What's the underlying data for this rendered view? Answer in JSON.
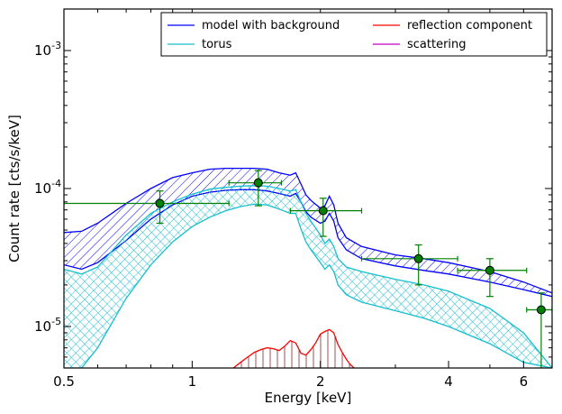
{
  "chart_data": {
    "type": "line",
    "xlabel": "Energy [keV]",
    "ylabel": "Count rate [cts/s/keV]",
    "x_scale": "log",
    "y_scale": "log",
    "xlim": [
      0.5,
      7.0
    ],
    "ylim": [
      5e-06,
      0.002
    ],
    "grid": false,
    "legend_position": "top-right",
    "x_ticks": [
      {
        "value": 0.5,
        "label": "0.5"
      },
      {
        "value": 1,
        "label": "1"
      },
      {
        "value": 2,
        "label": "2"
      },
      {
        "value": 4,
        "label": "4"
      },
      {
        "value": 6,
        "label": "6"
      }
    ],
    "y_ticks": [
      {
        "value": 1e-05,
        "label": "10",
        "exp": "-5"
      },
      {
        "value": 0.0001,
        "label": "10",
        "exp": "-4"
      },
      {
        "value": 0.001,
        "label": "10",
        "exp": "-3"
      }
    ],
    "legend": [
      {
        "name": "model with background",
        "color": "#0000ff"
      },
      {
        "name": "reflection component",
        "color": "#ff0000"
      },
      {
        "name": "torus",
        "color": "#17becf"
      },
      {
        "name": "scattering",
        "color": "#bf00bf"
      }
    ],
    "bands": [
      {
        "series": "model with background",
        "color": "#0000ff",
        "hatch": "diagonal",
        "x": [
          0.5,
          0.55,
          0.6,
          0.7,
          0.8,
          0.9,
          1.0,
          1.1,
          1.2,
          1.3,
          1.4,
          1.5,
          1.6,
          1.7,
          1.75,
          1.8,
          1.85,
          1.9,
          2.0,
          2.05,
          2.1,
          2.15,
          2.2,
          2.3,
          2.5,
          3.0,
          3.5,
          4.0,
          5.0,
          6.0,
          7.0
        ],
        "upper": [
          4.8e-05,
          4.9e-05,
          5.6e-05,
          7.8e-05,
          0.0001,
          0.00012,
          0.00013,
          0.000138,
          0.00014,
          0.00014,
          0.00014,
          0.000138,
          0.00013,
          0.000125,
          0.00013,
          0.000108,
          9e-05,
          8.2e-05,
          7.2e-05,
          7.5e-05,
          8.8e-05,
          7.6e-05,
          5.6e-05,
          4.4e-05,
          3.8e-05,
          3.3e-05,
          3.1e-05,
          2.9e-05,
          2.5e-05,
          2.1e-05,
          1.75e-05
        ],
        "lower": [
          2.8e-05,
          2.6e-05,
          2.9e-05,
          4.2e-05,
          6e-05,
          7.6e-05,
          8.8e-05,
          9.4e-05,
          9.7e-05,
          9.8e-05,
          9.8e-05,
          9.6e-05,
          9.2e-05,
          8.8e-05,
          9.2e-05,
          8e-05,
          6.8e-05,
          6.2e-05,
          5.6e-05,
          5.8e-05,
          6.6e-05,
          5.8e-05,
          4.4e-05,
          3.6e-05,
          3.1e-05,
          2.75e-05,
          2.55e-05,
          2.4e-05,
          2.1e-05,
          1.85e-05,
          1.65e-05
        ]
      },
      {
        "series": "torus",
        "color": "#17becf",
        "hatch": "cross",
        "x": [
          0.5,
          0.55,
          0.6,
          0.7,
          0.8,
          0.9,
          1.0,
          1.1,
          1.2,
          1.3,
          1.4,
          1.5,
          1.6,
          1.7,
          1.75,
          1.8,
          1.85,
          1.9,
          2.0,
          2.05,
          2.1,
          2.15,
          2.2,
          2.3,
          2.5,
          3.0,
          3.5,
          4.0,
          5.0,
          6.0,
          7.0
        ],
        "upper": [
          2.6e-05,
          2.4e-05,
          2.7e-05,
          4.6e-05,
          6.6e-05,
          8e-05,
          9.1e-05,
          9.9e-05,
          0.000102,
          0.000104,
          0.000105,
          0.000104,
          0.0001,
          9.6e-05,
          9.8e-05,
          8e-05,
          6.6e-05,
          5.8e-05,
          4.6e-05,
          4e-05,
          4.3e-05,
          3.8e-05,
          3.1e-05,
          2.7e-05,
          2.5e-05,
          2.2e-05,
          2e-05,
          1.8e-05,
          1.35e-05,
          9e-06,
          5e-06
        ],
        "lower": [
          5e-06,
          5e-06,
          7e-06,
          1.6e-05,
          2.8e-05,
          4.1e-05,
          5.3e-05,
          6.2e-05,
          6.9e-05,
          7.4e-05,
          7.7e-05,
          7.6e-05,
          7.1e-05,
          6.6e-05,
          6.6e-05,
          5.1e-05,
          4.1e-05,
          3.6e-05,
          2.9e-05,
          2.6e-05,
          2.8e-05,
          2.5e-05,
          2e-05,
          1.7e-05,
          1.5e-05,
          1.3e-05,
          1.15e-05,
          1e-05,
          7.5e-06,
          5.5e-06,
          5e-06
        ]
      }
    ],
    "lines": [
      {
        "series": "reflection component",
        "color": "#ff0000",
        "hatch": "vertical",
        "x": [
          1.25,
          1.3,
          1.35,
          1.4,
          1.45,
          1.5,
          1.55,
          1.6,
          1.65,
          1.7,
          1.75,
          1.8,
          1.85,
          1.9,
          1.95,
          2.0,
          2.05,
          2.1,
          2.15,
          2.2,
          2.25,
          2.3,
          2.35,
          2.4
        ],
        "y": [
          5e-06,
          5.5e-06,
          6e-06,
          6.5e-06,
          6.8e-06,
          7e-06,
          6.9e-06,
          6.7e-06,
          7.2e-06,
          7.9e-06,
          7.6e-06,
          6.4e-06,
          6.2e-06,
          6.8e-06,
          7.6e-06,
          8.8e-06,
          9.2e-06,
          9.5e-06,
          9e-06,
          7.4e-06,
          6.5e-06,
          5.8e-06,
          5.3e-06,
          5e-06
        ]
      }
    ],
    "data_points": {
      "color": "#008000",
      "points": [
        {
          "x": 0.84,
          "y": 7.8e-05,
          "xerr": [
            0.5,
            1.22
          ],
          "yerr": [
            5.6e-05,
            9.6e-05
          ]
        },
        {
          "x": 1.43,
          "y": 0.00011,
          "xerr": [
            1.22,
            1.62
          ],
          "yerr": [
            7.5e-05,
            0.000135
          ]
        },
        {
          "x": 2.03,
          "y": 6.9e-05,
          "xerr": [
            1.7,
            2.5
          ],
          "yerr": [
            4.5e-05,
            8.5e-05
          ]
        },
        {
          "x": 3.4,
          "y": 3.1e-05,
          "xerr": [
            2.5,
            4.2
          ],
          "yerr": [
            2e-05,
            3.9e-05
          ]
        },
        {
          "x": 5.0,
          "y": 2.55e-05,
          "xerr": [
            4.2,
            6.1
          ],
          "yerr": [
            1.65e-05,
            3.1e-05
          ]
        },
        {
          "x": 6.6,
          "y": 1.32e-05,
          "xerr": [
            6.1,
            7.0
          ],
          "yerr": [
            5e-06,
            1.75e-05
          ]
        }
      ]
    }
  }
}
